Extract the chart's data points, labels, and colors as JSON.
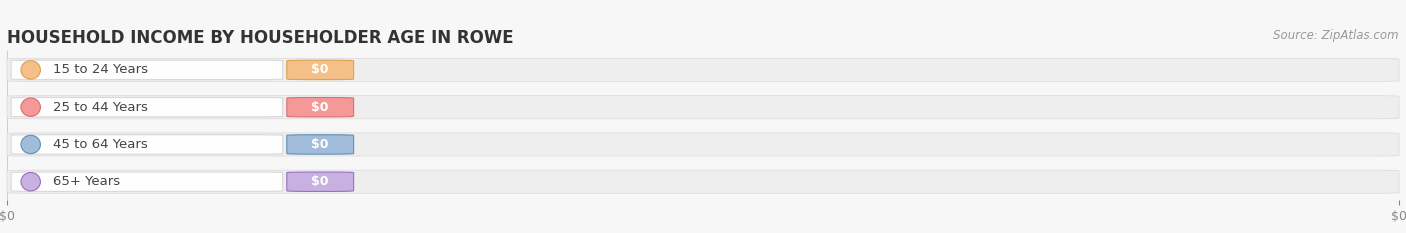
{
  "title": "HOUSEHOLD INCOME BY HOUSEHOLDER AGE IN ROWE",
  "source": "Source: ZipAtlas.com",
  "categories": [
    "15 to 24 Years",
    "25 to 44 Years",
    "45 to 64 Years",
    "65+ Years"
  ],
  "values": [
    0,
    0,
    0,
    0
  ],
  "bar_colors": [
    "#f5c088",
    "#f59898",
    "#a0bcd8",
    "#c8b0e0"
  ],
  "bar_edge_colors": [
    "#dda050",
    "#d87070",
    "#6090b8",
    "#9870c0"
  ],
  "track_color": "#eeeeee",
  "track_edge_color": "#dddddd",
  "background_color": "#f7f7f7",
  "xlim": [
    0,
    1
  ],
  "xlabel_ticks": [
    "$0",
    "$0"
  ],
  "title_fontsize": 12,
  "label_fontsize": 9.5,
  "tick_fontsize": 9,
  "source_fontsize": 8.5,
  "bar_height": 0.62,
  "figsize": [
    14.06,
    2.33
  ],
  "dpi": 100
}
